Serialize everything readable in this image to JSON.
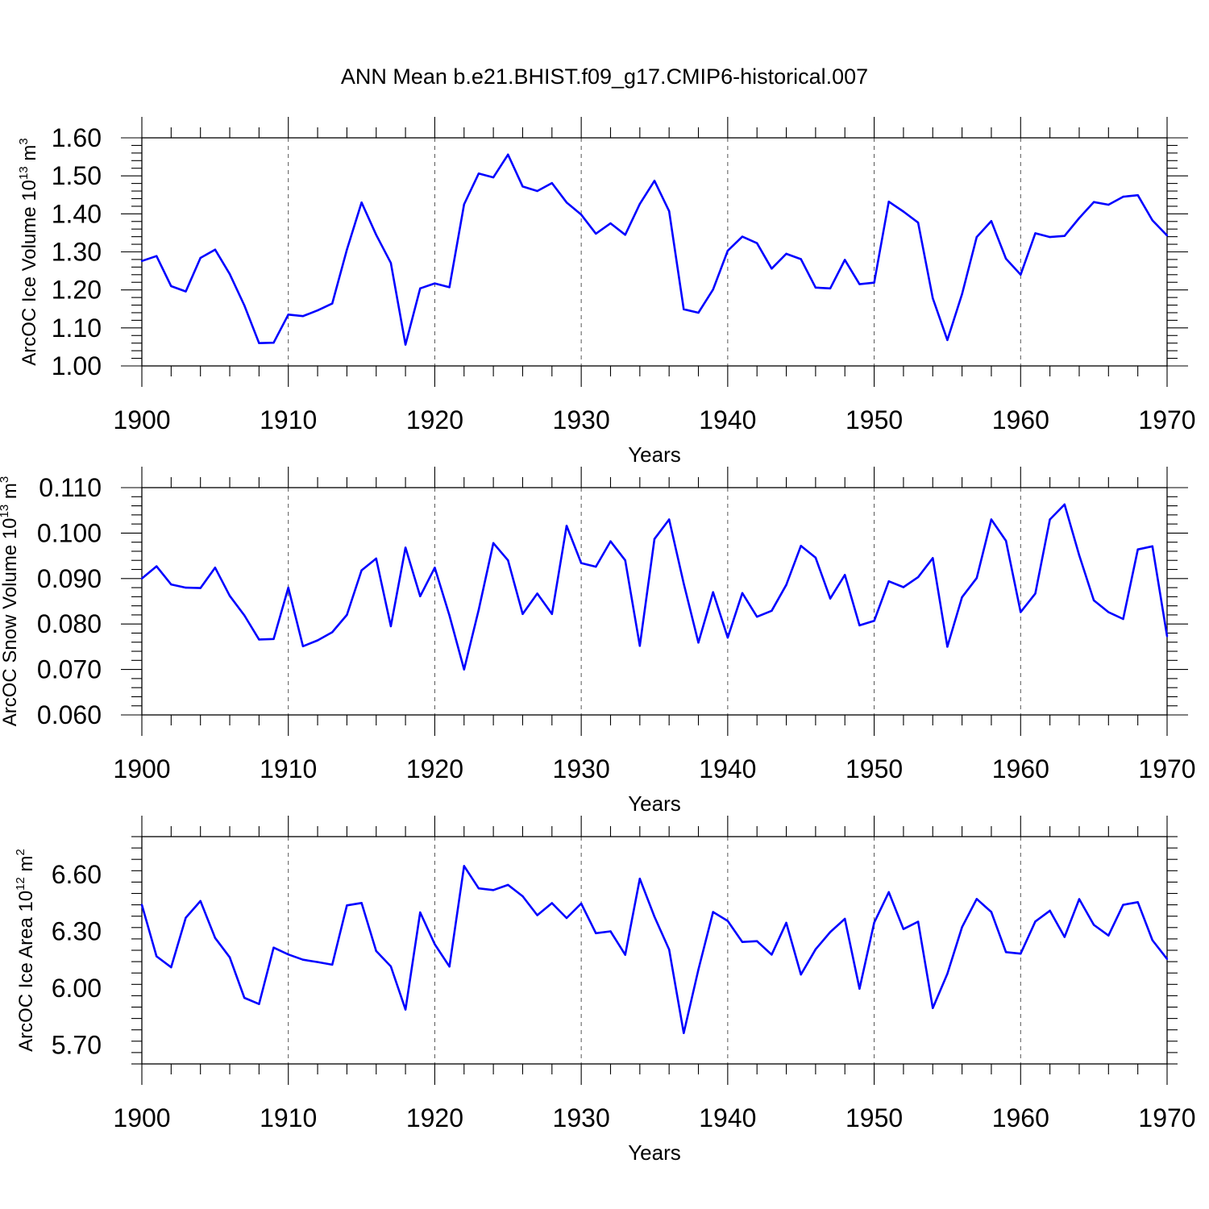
{
  "figure": {
    "title": "ANN Mean b.e21.BHIST.f09_g17.CMIP6-historical.007",
    "line_color": "#0000ff"
  },
  "chart_data": [
    {
      "type": "line",
      "title": "",
      "xlabel": "Years",
      "ylabel": {
        "main": "ArcOC Ice Volume 10",
        "exp": "13",
        "unit": " m",
        "unit_exp": "3"
      },
      "xlim": [
        1900,
        1970
      ],
      "ylim": [
        1.0,
        1.6
      ],
      "xticks": [
        "1900",
        "1910",
        "1920",
        "1930",
        "1940",
        "1950",
        "1960",
        "1970"
      ],
      "yticks": [
        "1.00",
        "1.10",
        "1.20",
        "1.30",
        "1.40",
        "1.50",
        "1.60"
      ],
      "x": [
        1900,
        1901,
        1902,
        1903,
        1904,
        1905,
        1906,
        1907,
        1908,
        1909,
        1910,
        1911,
        1912,
        1913,
        1914,
        1915,
        1916,
        1917,
        1918,
        1919,
        1920,
        1921,
        1922,
        1923,
        1924,
        1925,
        1926,
        1927,
        1928,
        1929,
        1930,
        1931,
        1932,
        1933,
        1934,
        1935,
        1936,
        1937,
        1938,
        1939,
        1940,
        1941,
        1942,
        1943,
        1944,
        1945,
        1946,
        1947,
        1948,
        1949,
        1950,
        1951,
        1952,
        1953,
        1954,
        1955,
        1956,
        1957,
        1958,
        1959,
        1960,
        1961,
        1962,
        1963,
        1964,
        1965,
        1966,
        1967,
        1968,
        1969,
        1970
      ],
      "series": [
        {
          "name": "ArcOC Ice Volume",
          "values": [
            1.276,
            1.289,
            1.21,
            1.196,
            1.284,
            1.306,
            1.242,
            1.159,
            1.06,
            1.061,
            1.135,
            1.131,
            1.146,
            1.164,
            1.306,
            1.43,
            1.345,
            1.271,
            1.056,
            1.204,
            1.217,
            1.207,
            1.425,
            1.506,
            1.496,
            1.556,
            1.472,
            1.46,
            1.481,
            1.43,
            1.398,
            1.348,
            1.375,
            1.345,
            1.426,
            1.487,
            1.407,
            1.149,
            1.14,
            1.201,
            1.303,
            1.34,
            1.323,
            1.256,
            1.295,
            1.281,
            1.206,
            1.204,
            1.279,
            1.215,
            1.219,
            1.432,
            1.406,
            1.377,
            1.178,
            1.068,
            1.189,
            1.339,
            1.381,
            1.282,
            1.24,
            1.349,
            1.339,
            1.342,
            1.389,
            1.431,
            1.424,
            1.445,
            1.449,
            1.383,
            1.343
          ]
        }
      ]
    },
    {
      "type": "line",
      "title": "",
      "xlabel": "Years",
      "ylabel": {
        "main": "ArcOC Snow Volume 10",
        "exp": "13",
        "unit": " m",
        "unit_exp": "3"
      },
      "xlim": [
        1900,
        1970
      ],
      "ylim": [
        0.06,
        0.11
      ],
      "xticks": [
        "1900",
        "1910",
        "1920",
        "1930",
        "1940",
        "1950",
        "1960",
        "1970"
      ],
      "yticks": [
        "0.060",
        "0.070",
        "0.080",
        "0.090",
        "0.100",
        "0.110"
      ],
      "x": [
        1900,
        1901,
        1902,
        1903,
        1904,
        1905,
        1906,
        1907,
        1908,
        1909,
        1910,
        1911,
        1912,
        1913,
        1914,
        1915,
        1916,
        1917,
        1918,
        1919,
        1920,
        1921,
        1922,
        1923,
        1924,
        1925,
        1926,
        1927,
        1928,
        1929,
        1930,
        1931,
        1932,
        1933,
        1934,
        1935,
        1936,
        1937,
        1938,
        1939,
        1940,
        1941,
        1942,
        1943,
        1944,
        1945,
        1946,
        1947,
        1948,
        1949,
        1950,
        1951,
        1952,
        1953,
        1954,
        1955,
        1956,
        1957,
        1958,
        1959,
        1960,
        1961,
        1962,
        1963,
        1964,
        1965,
        1966,
        1967,
        1968,
        1969,
        1970
      ],
      "series": [
        {
          "name": "ArcOC Snow Volume",
          "values": [
            0.09,
            0.0927,
            0.0887,
            0.088,
            0.0879,
            0.0924,
            0.0862,
            0.0819,
            0.0766,
            0.0767,
            0.088,
            0.0751,
            0.0764,
            0.0782,
            0.082,
            0.0918,
            0.0944,
            0.0795,
            0.0968,
            0.0861,
            0.0924,
            0.0819,
            0.07,
            0.0831,
            0.0978,
            0.094,
            0.0822,
            0.0867,
            0.0822,
            0.1016,
            0.0934,
            0.0926,
            0.0982,
            0.094,
            0.0752,
            0.0987,
            0.103,
            0.0889,
            0.0759,
            0.087,
            0.077,
            0.0868,
            0.0816,
            0.0829,
            0.0886,
            0.0972,
            0.0946,
            0.0856,
            0.0908,
            0.0797,
            0.0807,
            0.0894,
            0.0881,
            0.0903,
            0.0945,
            0.075,
            0.0859,
            0.0901,
            0.103,
            0.0983,
            0.0826,
            0.0867,
            0.103,
            0.1063,
            0.0951,
            0.0852,
            0.0826,
            0.0811,
            0.0964,
            0.0971,
            0.0773
          ]
        }
      ]
    },
    {
      "type": "line",
      "title": "",
      "xlabel": "Years",
      "ylabel": {
        "main": "ArcOC Ice Area 10",
        "exp": "12",
        "unit": " m",
        "unit_exp": "2"
      },
      "xlim": [
        1900,
        1970
      ],
      "ylim": [
        5.6,
        6.8
      ],
      "xticks": [
        "1900",
        "1910",
        "1920",
        "1930",
        "1940",
        "1950",
        "1960",
        "1970"
      ],
      "yticks": [
        "5.70",
        "6.00",
        "6.30",
        "6.60"
      ],
      "x": [
        1900,
        1901,
        1902,
        1903,
        1904,
        1905,
        1906,
        1907,
        1908,
        1909,
        1910,
        1911,
        1912,
        1913,
        1914,
        1915,
        1916,
        1917,
        1918,
        1919,
        1920,
        1921,
        1922,
        1923,
        1924,
        1925,
        1926,
        1927,
        1928,
        1929,
        1930,
        1931,
        1932,
        1933,
        1934,
        1935,
        1936,
        1937,
        1938,
        1939,
        1940,
        1941,
        1942,
        1943,
        1944,
        1945,
        1946,
        1947,
        1948,
        1949,
        1950,
        1951,
        1952,
        1953,
        1954,
        1955,
        1956,
        1957,
        1958,
        1959,
        1960,
        1961,
        1962,
        1963,
        1964,
        1965,
        1966,
        1967,
        1968,
        1969,
        1970
      ],
      "series": [
        {
          "name": "ArcOC Ice Area",
          "values": [
            6.44,
            6.168,
            6.11,
            6.372,
            6.46,
            6.265,
            6.163,
            5.949,
            5.916,
            6.214,
            6.178,
            6.15,
            6.138,
            6.124,
            6.437,
            6.45,
            6.196,
            6.115,
            5.887,
            6.4,
            6.232,
            6.114,
            6.645,
            6.527,
            6.518,
            6.545,
            6.485,
            6.385,
            6.449,
            6.37,
            6.447,
            6.29,
            6.3,
            6.176,
            6.578,
            6.377,
            6.204,
            5.763,
            6.098,
            6.402,
            6.355,
            6.244,
            6.248,
            6.177,
            6.345,
            6.072,
            6.205,
            6.296,
            6.366,
            5.997,
            6.346,
            6.507,
            6.312,
            6.351,
            5.895,
            6.076,
            6.322,
            6.471,
            6.402,
            6.19,
            6.182,
            6.352,
            6.409,
            6.27,
            6.47,
            6.334,
            6.278,
            6.44,
            6.454,
            6.253,
            6.154
          ]
        }
      ]
    }
  ]
}
